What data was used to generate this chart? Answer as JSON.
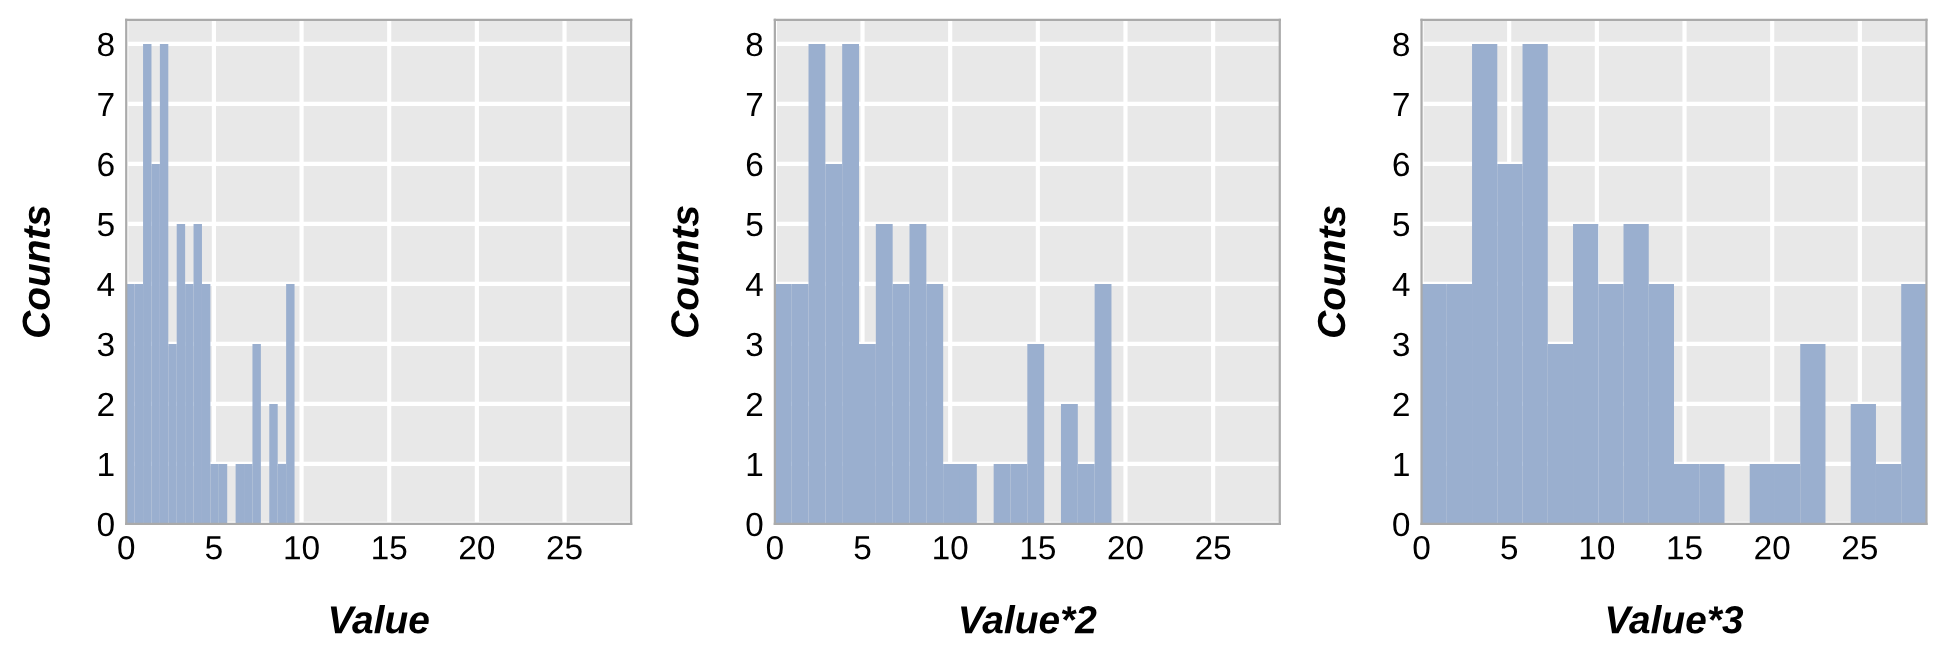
{
  "chart_data": [
    {
      "type": "histogram",
      "xlabel": "Value",
      "ylabel": "Counts",
      "bins": [
        0,
        0.48,
        0.96,
        1.44,
        1.92,
        2.4,
        2.88,
        3.36,
        3.84,
        4.32,
        4.8,
        5.28,
        5.76,
        6.24,
        6.72,
        7.2,
        7.68,
        8.16,
        8.64,
        9.12,
        9.6
      ],
      "values": [
        4,
        4,
        8,
        6,
        8,
        3,
        5,
        4,
        5,
        4,
        1,
        1,
        0,
        1,
        1,
        3,
        0,
        2,
        1,
        4
      ],
      "color": "#9aafcf",
      "xlim": [
        0,
        28.8
      ],
      "ylim": [
        0,
        8.4
      ],
      "xticks": [
        0,
        5,
        10,
        15,
        20,
        25
      ],
      "yticks": [
        0,
        1,
        2,
        3,
        4,
        5,
        6,
        7,
        8
      ],
      "grid": true
    },
    {
      "type": "histogram",
      "xlabel": "Value*2",
      "ylabel": "Counts",
      "bins": [
        0,
        0.96,
        1.92,
        2.88,
        3.84,
        4.8,
        5.76,
        6.72,
        7.68,
        8.64,
        9.6,
        10.56,
        11.52,
        12.48,
        13.44,
        14.4,
        15.36,
        16.32,
        17.28,
        18.24,
        19.2
      ],
      "values": [
        4,
        4,
        8,
        6,
        8,
        3,
        5,
        4,
        5,
        4,
        1,
        1,
        0,
        1,
        1,
        3,
        0,
        2,
        1,
        4
      ],
      "color": "#9aafcf",
      "xlim": [
        0,
        28.8
      ],
      "ylim": [
        0,
        8.4
      ],
      "xticks": [
        0,
        5,
        10,
        15,
        20,
        25
      ],
      "yticks": [
        0,
        1,
        2,
        3,
        4,
        5,
        6,
        7,
        8
      ],
      "grid": true
    },
    {
      "type": "histogram",
      "xlabel": "Value*3",
      "ylabel": "Counts",
      "bins": [
        0,
        1.44,
        2.88,
        4.32,
        5.76,
        7.2,
        8.64,
        10.08,
        11.52,
        12.96,
        14.4,
        15.84,
        17.28,
        18.72,
        20.16,
        21.6,
        23.04,
        24.48,
        25.92,
        27.36,
        28.8
      ],
      "values": [
        4,
        4,
        8,
        6,
        8,
        3,
        5,
        4,
        5,
        4,
        1,
        1,
        0,
        1,
        1,
        3,
        0,
        2,
        1,
        4
      ],
      "color": "#9aafcf",
      "xlim": [
        0,
        28.8
      ],
      "ylim": [
        0,
        8.4
      ],
      "xticks": [
        0,
        5,
        10,
        15,
        20,
        25
      ],
      "yticks": [
        0,
        1,
        2,
        3,
        4,
        5,
        6,
        7,
        8
      ],
      "grid": true
    }
  ]
}
